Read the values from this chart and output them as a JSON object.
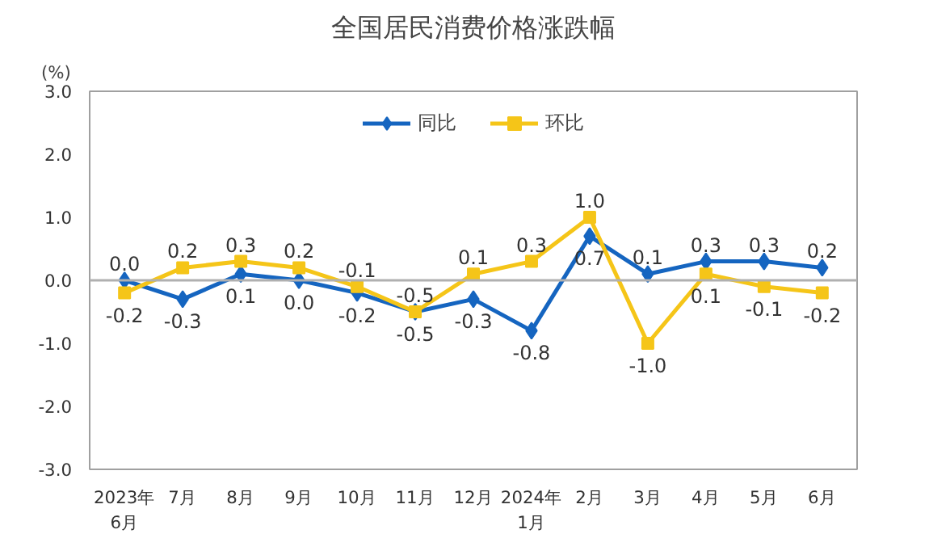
{
  "chart_data": {
    "type": "line",
    "title": "全国居民消费价格涨跌幅",
    "ylabel": "(%)",
    "categories": [
      "2023年\n6月",
      "7月",
      "8月",
      "9月",
      "10月",
      "11月",
      "12月",
      "2024年\n1月",
      "2月",
      "3月",
      "4月",
      "5月",
      "6月"
    ],
    "series": [
      {
        "name": "同比",
        "color": "#1565c0",
        "marker": "diamond",
        "values": [
          0.0,
          -0.3,
          0.1,
          0.0,
          -0.2,
          -0.5,
          -0.3,
          -0.8,
          0.7,
          0.1,
          0.3,
          0.3,
          0.2
        ],
        "value_labels": [
          "0.0",
          "-0.3",
          "0.1",
          "0.0",
          "-0.2",
          "-0.5",
          "-0.3",
          "-0.8",
          "0.7",
          "0.1",
          "0.3",
          "0.3",
          "0.2"
        ]
      },
      {
        "name": "环比",
        "color": "#f5c518",
        "marker": "square",
        "values": [
          -0.2,
          0.2,
          0.3,
          0.2,
          -0.1,
          -0.5,
          0.1,
          0.3,
          1.0,
          -1.0,
          0.1,
          -0.1,
          -0.2
        ],
        "value_labels": [
          "-0.2",
          "0.2",
          "0.3",
          "0.2",
          "-0.1",
          "-0.5",
          "0.1",
          "0.3",
          "1.0",
          "-1.0",
          "0.1",
          "-0.1",
          "-0.2"
        ]
      }
    ],
    "ylim": [
      -3.0,
      3.0
    ],
    "yticks": [
      {
        "value": -3,
        "label": "-3.0"
      },
      {
        "value": -2,
        "label": "-2.0"
      },
      {
        "value": -1,
        "label": "-1.0"
      },
      {
        "value": 0,
        "label": "0.0"
      },
      {
        "value": 1,
        "label": "1.0"
      },
      {
        "value": 2,
        "label": "2.0"
      },
      {
        "value": 3,
        "label": "3.0"
      }
    ],
    "ref_lines": [
      {
        "axis": "y",
        "value": 0,
        "color": "#b0b0b0"
      }
    ],
    "grid": false,
    "legend": "top",
    "line_style": "solid"
  }
}
